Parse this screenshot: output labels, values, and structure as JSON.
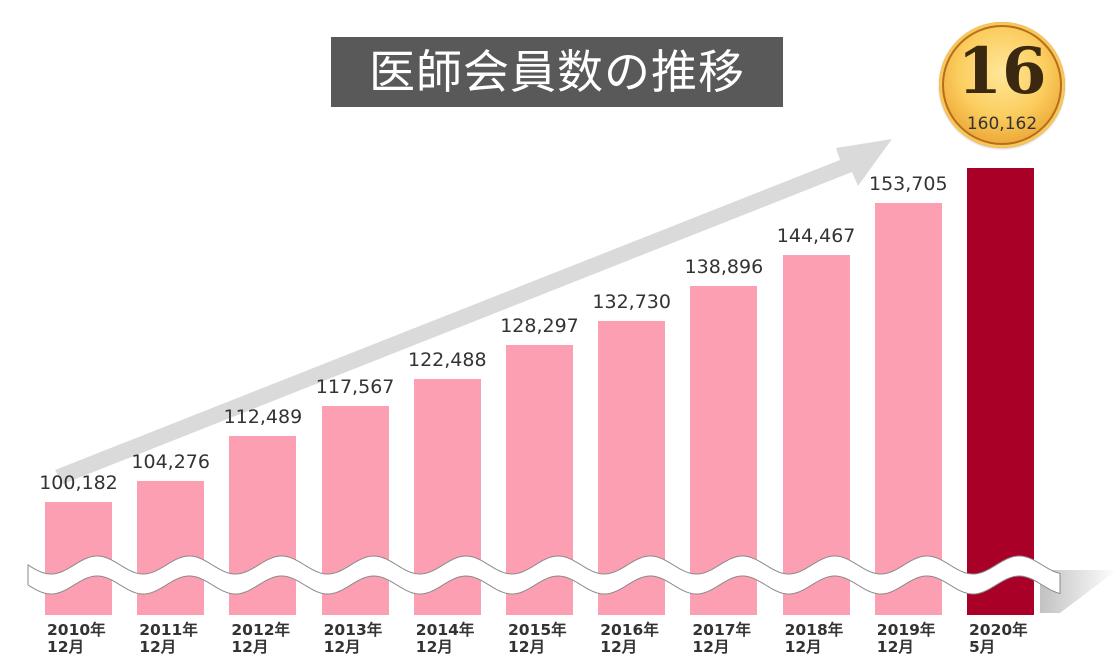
{
  "title": "医師会員数の推移",
  "medal": {
    "rank": "16",
    "value": "160,162"
  },
  "colors": {
    "bar": "#fc9fb2",
    "highlight": "#a80026",
    "title_bg": "#595959",
    "arrow": "#d4d4d4"
  },
  "bars": [
    {
      "value": "100,182",
      "year": "2010年",
      "month": "12月"
    },
    {
      "value": "104,276",
      "year": "2011年",
      "month": "12月"
    },
    {
      "value": "112,489",
      "year": "2012年",
      "month": "12月"
    },
    {
      "value": "117,567",
      "year": "2013年",
      "month": "12月"
    },
    {
      "value": "122,488",
      "year": "2014年",
      "month": "12月"
    },
    {
      "value": "128,297",
      "year": "2015年",
      "month": "12月"
    },
    {
      "value": "132,730",
      "year": "2016年",
      "month": "12月"
    },
    {
      "value": "138,896",
      "year": "2017年",
      "month": "12月"
    },
    {
      "value": "144,467",
      "year": "2018年",
      "month": "12月"
    },
    {
      "value": "153,705",
      "year": "2019年",
      "month": "12月"
    },
    {
      "value": "",
      "year": "2020年",
      "month": "5月"
    }
  ],
  "chart_data": {
    "type": "bar",
    "title": "医師会員数の推移",
    "categories": [
      "2010年12月",
      "2011年12月",
      "2012年12月",
      "2013年12月",
      "2014年12月",
      "2015年12月",
      "2016年12月",
      "2017年12月",
      "2018年12月",
      "2019年12月",
      "2020年5月"
    ],
    "values": [
      100182,
      104276,
      112489,
      117567,
      122488,
      128297,
      132730,
      138896,
      144467,
      153705,
      160162
    ],
    "xlabel": "",
    "ylabel": "",
    "annotations": [
      "Broken y-axis (wavy break)",
      "Upward trend arrow",
      "Medal: 16 / 160,162 on 2020年5月 bar"
    ],
    "highlight": {
      "category": "2020年5月",
      "color": "#a80026"
    },
    "grid": false,
    "legend": null
  }
}
